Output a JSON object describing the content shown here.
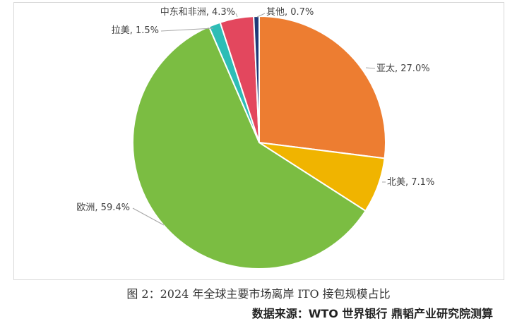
{
  "chart_data": {
    "type": "pie",
    "slices": [
      {
        "label": "亚太",
        "value": 27.0,
        "display": "亚太, 27.0%",
        "color": "#ED7D31"
      },
      {
        "label": "北美",
        "value": 7.1,
        "display": "北美, 7.1%",
        "color": "#F0B400"
      },
      {
        "label": "欧洲",
        "value": 59.4,
        "display": "欧洲, 59.4%",
        "color": "#7BBD42"
      },
      {
        "label": "拉美",
        "value": 1.5,
        "display": "拉美, 1.5%",
        "color": "#2DBDB6"
      },
      {
        "label": "中东和非洲",
        "value": 4.3,
        "display": "中东和非洲, 4.3%",
        "color": "#E3475E"
      },
      {
        "label": "其他",
        "value": 0.7,
        "display": "其他, 0.7%",
        "color": "#1F3A78"
      }
    ],
    "start_angle_deg": 0,
    "direction": "clockwise",
    "legend": "none"
  },
  "caption": "图 2：2024 年全球主要市场离岸 ITO 接包规模占比",
  "source": "数据来源：WTO 世界银行 鼎韬产业研究院测算"
}
